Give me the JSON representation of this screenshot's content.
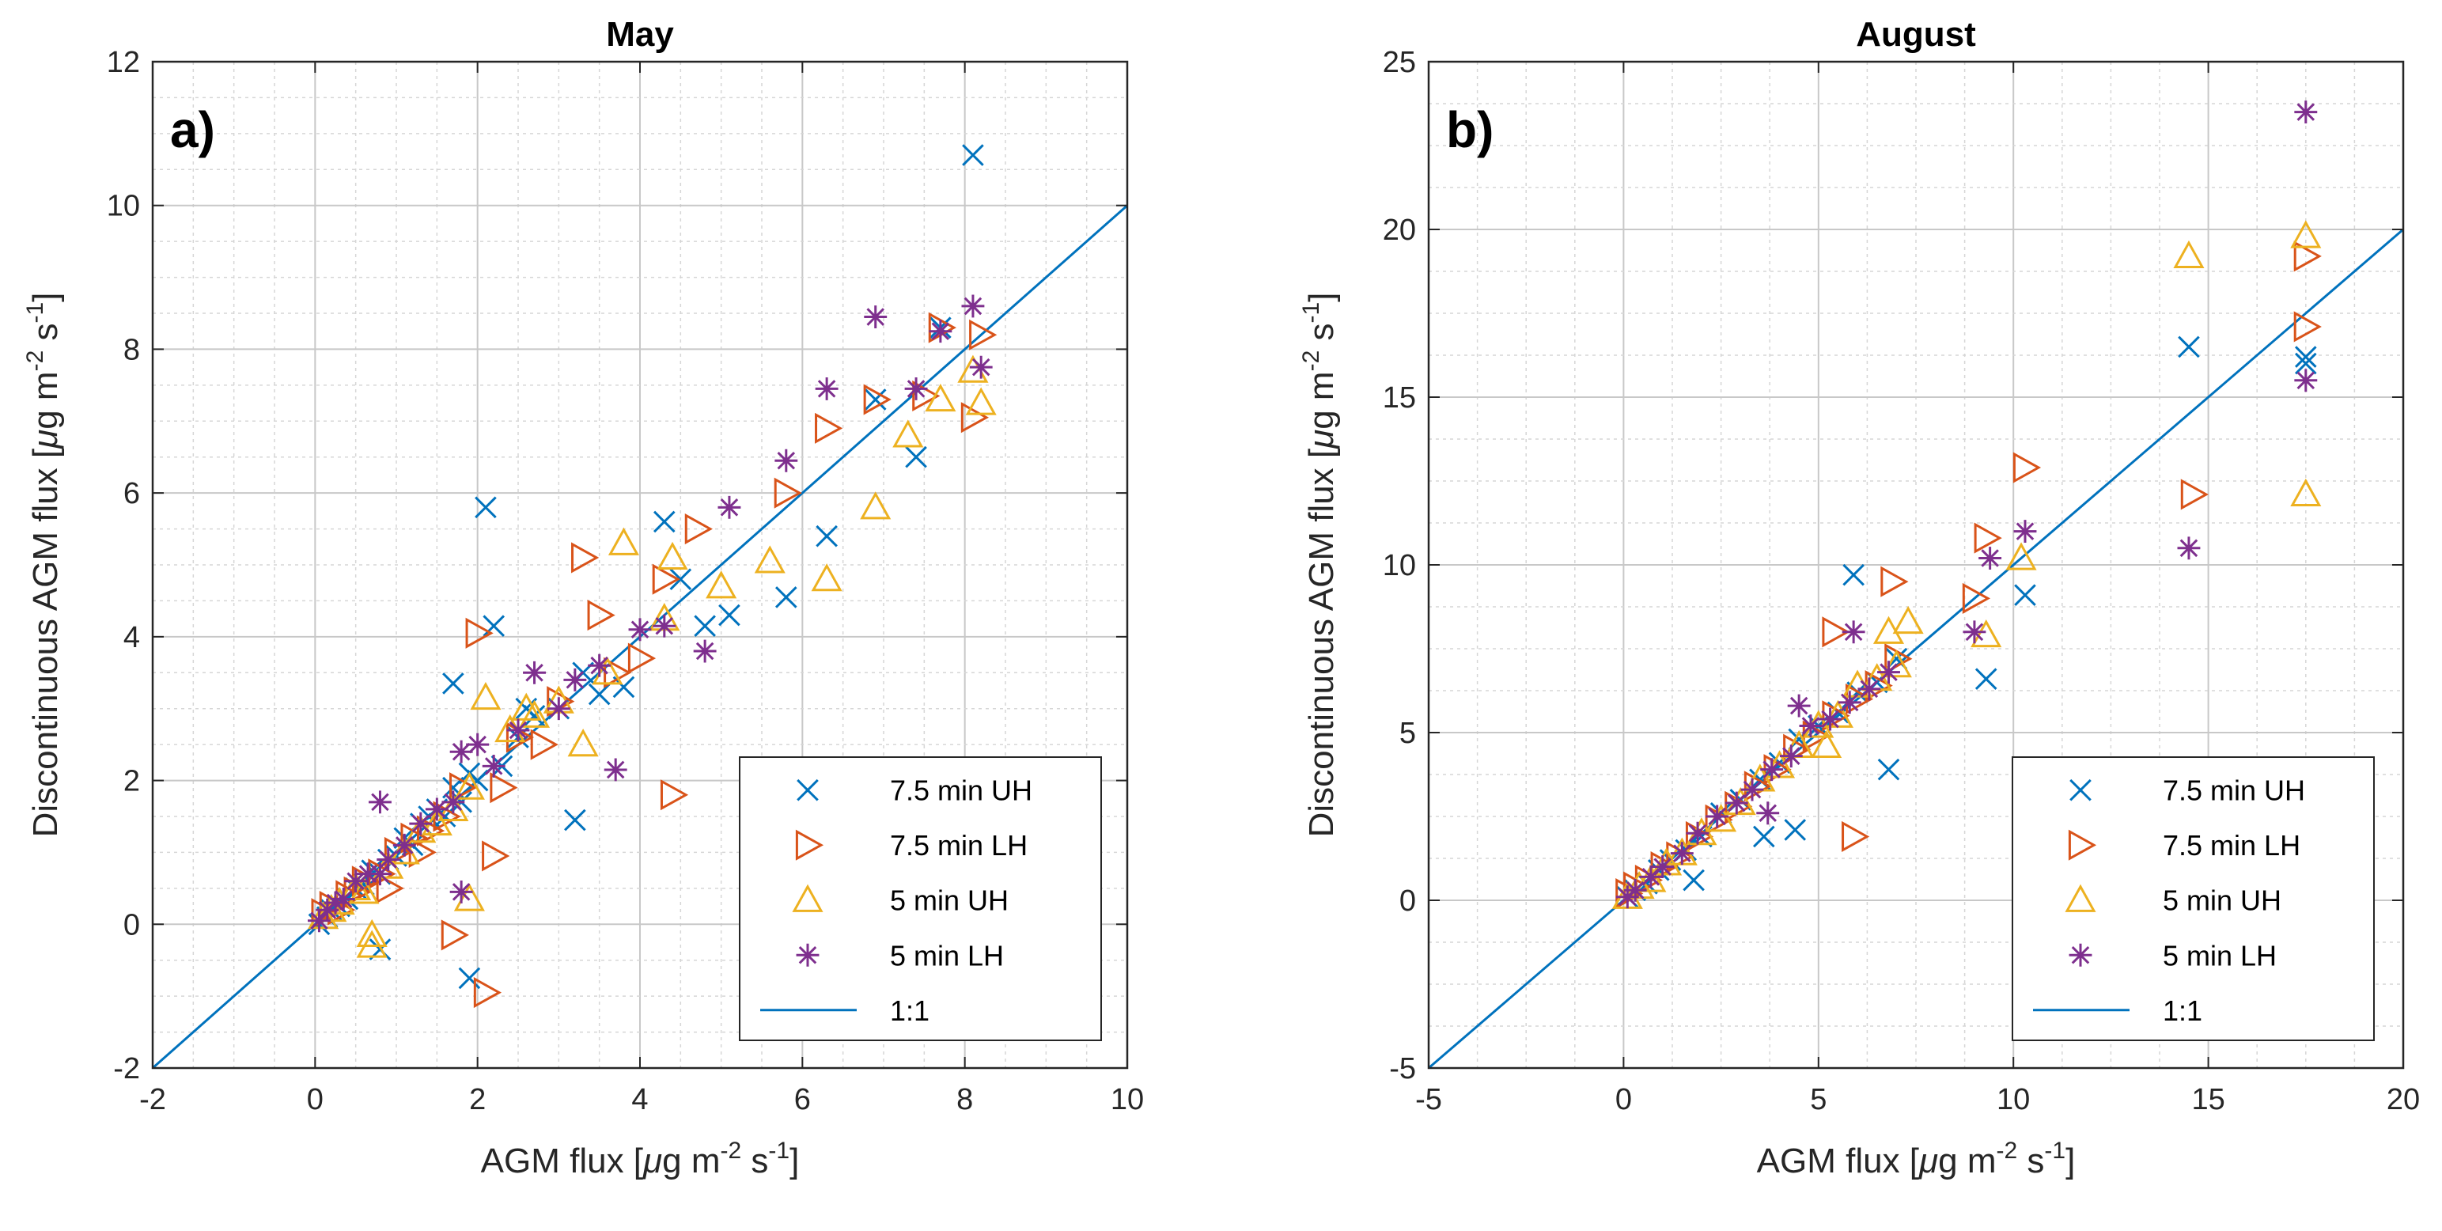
{
  "colors": {
    "uh75": "#0072BD",
    "lh75": "#D95319",
    "uh5": "#EDB120",
    "lh5": "#7E2F8E",
    "line": "#0072BD",
    "grid": "#b8b8b8",
    "axis": "#262626"
  },
  "chart_data": [
    {
      "type": "scatter",
      "title": "May",
      "panel_label": "a)",
      "xlabel": {
        "pre": "AGM flux [",
        "mu": "μ",
        "mid1": "g m",
        "sup1": "-2",
        "mid2": " s",
        "sup2": "-1",
        "post": "]"
      },
      "ylabel": {
        "pre": "Discontinuous AGM flux [",
        "mu": "μ",
        "mid1": "g m",
        "sup1": "-2",
        "mid2": " s",
        "sup2": "-1",
        "post": "]"
      },
      "xlim": [
        -2,
        10
      ],
      "ylim": [
        -2,
        12
      ],
      "xticks": [
        -2,
        0,
        2,
        4,
        6,
        8,
        10
      ],
      "yticks": [
        -2,
        0,
        2,
        4,
        6,
        8,
        10,
        12
      ],
      "xticklabels": [
        "-2",
        "0",
        "2",
        "4",
        "6",
        "8",
        "10"
      ],
      "yticklabels": [
        "-2",
        "0",
        "2",
        "4",
        "6",
        "8",
        "10",
        "12"
      ],
      "reference_line": {
        "name": "1:1",
        "x": [
          -2,
          10
        ],
        "y": [
          -2,
          10
        ]
      },
      "series": [
        {
          "name": "7.5 min UH",
          "marker": "x",
          "x": [
            0.05,
            0.15,
            0.2,
            0.3,
            0.4,
            0.5,
            0.6,
            0.7,
            0.8,
            0.9,
            1.0,
            1.1,
            1.2,
            1.3,
            1.5,
            1.6,
            1.7,
            1.8,
            1.9,
            2.0,
            2.1,
            2.3,
            2.5,
            2.7,
            3.0,
            3.2,
            3.5,
            3.8,
            4.3,
            4.5,
            4.8,
            5.1,
            5.8,
            6.3,
            6.9,
            7.4,
            7.7,
            8.1,
            1.9,
            0.8,
            2.2,
            1.7,
            2.6,
            3.3,
            1.4
          ],
          "y": [
            0.0,
            0.1,
            0.2,
            0.25,
            0.35,
            0.5,
            0.55,
            0.75,
            0.7,
            0.9,
            0.95,
            1.2,
            1.1,
            1.4,
            1.6,
            1.5,
            1.9,
            1.7,
            2.1,
            2.0,
            5.8,
            2.2,
            2.6,
            2.9,
            3.0,
            1.45,
            3.2,
            3.3,
            5.6,
            4.8,
            4.15,
            4.3,
            4.55,
            5.4,
            7.3,
            6.5,
            8.3,
            10.7,
            -0.75,
            -0.35,
            4.15,
            3.35,
            3.0,
            3.5,
            1.5
          ]
        },
        {
          "name": "7.5 min LH",
          "marker": "tri-right",
          "x": [
            0.1,
            0.2,
            0.3,
            0.4,
            0.5,
            0.6,
            0.8,
            1.0,
            1.2,
            1.4,
            1.6,
            1.8,
            2.0,
            2.1,
            2.2,
            2.5,
            2.8,
            3.0,
            3.3,
            3.5,
            3.7,
            4.0,
            4.3,
            4.4,
            4.7,
            5.8,
            6.3,
            6.9,
            7.5,
            7.7,
            8.2,
            8.1,
            1.7,
            2.3,
            0.9,
            1.3
          ],
          "y": [
            0.15,
            0.25,
            0.2,
            0.4,
            0.45,
            0.6,
            0.7,
            1.0,
            1.2,
            1.3,
            1.5,
            1.9,
            4.05,
            -0.95,
            0.95,
            2.6,
            2.5,
            3.1,
            5.1,
            4.3,
            3.5,
            3.7,
            4.8,
            1.8,
            5.5,
            6.0,
            6.9,
            7.3,
            7.35,
            8.3,
            8.2,
            7.05,
            -0.15,
            1.9,
            0.5,
            1.0
          ]
        },
        {
          "name": "5 min UH",
          "marker": "tri-up",
          "x": [
            0.1,
            0.2,
            0.3,
            0.5,
            0.6,
            0.7,
            0.9,
            1.1,
            1.3,
            1.5,
            1.7,
            1.9,
            2.1,
            2.4,
            2.7,
            3.0,
            3.3,
            3.6,
            3.8,
            4.3,
            4.4,
            5.0,
            5.6,
            6.3,
            6.9,
            7.3,
            7.7,
            8.2,
            8.1,
            0.7,
            1.9,
            2.6
          ],
          "y": [
            0.1,
            0.2,
            0.3,
            0.5,
            0.45,
            -0.3,
            0.8,
            1.0,
            1.3,
            1.4,
            1.6,
            1.9,
            3.15,
            2.7,
            2.9,
            3.1,
            2.5,
            3.5,
            5.3,
            4.25,
            5.1,
            4.7,
            5.05,
            4.8,
            5.8,
            6.8,
            7.3,
            7.25,
            7.7,
            -0.15,
            0.35,
            3.0
          ]
        },
        {
          "name": "5 min LH",
          "marker": "star",
          "x": [
            0.05,
            0.15,
            0.25,
            0.35,
            0.5,
            0.65,
            0.8,
            0.9,
            1.1,
            1.3,
            1.5,
            1.7,
            1.8,
            2.0,
            2.2,
            2.5,
            2.7,
            3.0,
            3.2,
            3.5,
            3.7,
            4.0,
            4.3,
            4.8,
            5.1,
            5.8,
            6.3,
            6.9,
            7.4,
            7.7,
            8.1,
            8.2,
            1.8,
            0.8
          ],
          "y": [
            0.05,
            0.2,
            0.3,
            0.35,
            0.6,
            0.7,
            1.7,
            0.9,
            1.1,
            1.4,
            1.6,
            1.7,
            2.4,
            2.5,
            2.2,
            2.7,
            3.5,
            3.0,
            3.4,
            3.6,
            2.15,
            4.1,
            4.15,
            3.8,
            5.8,
            6.45,
            7.45,
            8.45,
            7.45,
            8.25,
            8.6,
            7.75,
            0.45,
            0.7
          ]
        }
      ]
    },
    {
      "type": "scatter",
      "title": "August",
      "panel_label": "b)",
      "xlabel": {
        "pre": "AGM flux [",
        "mu": "μ",
        "mid1": "g m",
        "sup1": "-2",
        "mid2": " s",
        "sup2": "-1",
        "post": "]"
      },
      "ylabel": {
        "pre": "Discontinuous AGM flux [",
        "mu": "μ",
        "mid1": "g m",
        "sup1": "-2",
        "mid2": " s",
        "sup2": "-1",
        "post": "]"
      },
      "xlim": [
        -5,
        20
      ],
      "ylim": [
        -5,
        25
      ],
      "xticks": [
        -5,
        0,
        5,
        10,
        15,
        20
      ],
      "yticks": [
        -5,
        0,
        5,
        10,
        15,
        20,
        25
      ],
      "xticklabels": [
        "-5",
        "0",
        "5",
        "10",
        "15",
        "20"
      ],
      "yticklabels": [
        "-5",
        "0",
        "5",
        "10",
        "15",
        "20",
        "25"
      ],
      "reference_line": {
        "name": "1:1",
        "x": [
          -5,
          20
        ],
        "y": [
          -5,
          20
        ]
      },
      "series": [
        {
          "name": "7.5 min UH",
          "marker": "x",
          "x": [
            0.1,
            0.3,
            0.6,
            0.9,
            1.2,
            1.6,
            2.0,
            2.5,
            3.0,
            3.5,
            4.0,
            4.5,
            5.0,
            5.5,
            6.0,
            6.5,
            7.0,
            9.3,
            10.3,
            14.5,
            17.5,
            17.5,
            1.8,
            3.6,
            4.4,
            5.9,
            6.8
          ],
          "y": [
            0.1,
            0.3,
            0.5,
            0.9,
            1.2,
            1.5,
            1.9,
            2.6,
            3.0,
            3.6,
            4.1,
            4.8,
            5.2,
            5.6,
            6.2,
            6.5,
            7.2,
            6.6,
            9.1,
            16.5,
            16.2,
            16.0,
            0.6,
            1.9,
            2.1,
            9.7,
            3.9
          ]
        },
        {
          "name": "7.5 min LH",
          "marker": "tri-right",
          "x": [
            0.1,
            0.3,
            0.6,
            1.0,
            1.4,
            1.9,
            2.4,
            2.9,
            3.4,
            3.9,
            4.4,
            4.9,
            5.4,
            6.0,
            6.5,
            7.0,
            9.0,
            9.3,
            10.3,
            14.6,
            17.5,
            17.5,
            5.9,
            6.9,
            5.4
          ],
          "y": [
            0.2,
            0.4,
            0.6,
            1.0,
            1.3,
            1.9,
            2.4,
            2.8,
            3.4,
            3.9,
            4.5,
            4.9,
            5.5,
            6.0,
            6.4,
            7.2,
            9.0,
            10.8,
            12.9,
            12.1,
            19.2,
            17.1,
            1.9,
            9.5,
            8.0
          ]
        },
        {
          "name": "5 min UH",
          "marker": "tri-up",
          "x": [
            0.1,
            0.4,
            0.7,
            1.1,
            1.5,
            2.0,
            2.5,
            3.0,
            3.5,
            4.0,
            4.5,
            5.0,
            5.5,
            6.0,
            6.5,
            7.0,
            7.3,
            9.3,
            10.2,
            14.5,
            17.5,
            17.5,
            5.2,
            6.8
          ],
          "y": [
            0.1,
            0.4,
            0.6,
            1.1,
            1.4,
            2.0,
            2.4,
            2.9,
            3.6,
            4.0,
            4.6,
            5.2,
            5.5,
            6.4,
            6.6,
            7.0,
            8.3,
            7.9,
            10.2,
            19.2,
            19.8,
            12.1,
            4.6,
            8.0
          ]
        },
        {
          "name": "5 min LH",
          "marker": "star",
          "x": [
            0.1,
            0.3,
            0.7,
            1.0,
            1.5,
            1.9,
            2.4,
            2.9,
            3.3,
            3.8,
            4.3,
            4.8,
            5.3,
            5.8,
            6.3,
            6.8,
            9.0,
            9.4,
            10.3,
            14.5,
            17.5,
            17.5,
            3.7,
            4.5,
            5.9
          ],
          "y": [
            0.1,
            0.3,
            0.7,
            1.0,
            1.4,
            2.0,
            2.5,
            2.9,
            3.3,
            3.9,
            4.3,
            5.2,
            5.4,
            5.9,
            6.3,
            6.8,
            8.0,
            10.2,
            11.0,
            10.5,
            23.5,
            15.5,
            2.6,
            5.8,
            8.0
          ]
        }
      ]
    }
  ]
}
